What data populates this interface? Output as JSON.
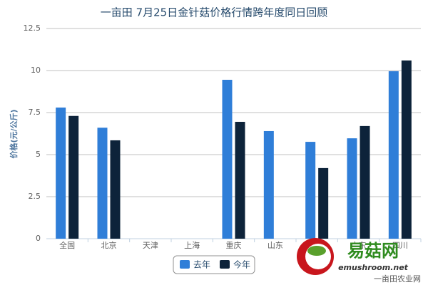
{
  "chart_data": {
    "type": "bar",
    "title": "一亩田 7月25日金针菇价格行情跨年度同日回顾",
    "y_label": "价格(元/公斤)",
    "categories": [
      "全国",
      "北京",
      "天津",
      "上海",
      "重庆",
      "山东",
      null,
      "广东",
      "四川"
    ],
    "series": [
      {
        "name": "去年",
        "color": "#2f7ed8",
        "values": [
          7.8,
          6.6,
          null,
          null,
          9.45,
          6.4,
          5.76,
          5.97,
          9.96
        ]
      },
      {
        "name": "今年",
        "color": "#0d233a",
        "values": [
          7.3,
          5.85,
          null,
          null,
          6.95,
          null,
          4.2,
          6.7,
          10.6
        ]
      }
    ],
    "ylim": [
      0,
      12.5
    ],
    "yticks": [
      0,
      2.5,
      5,
      7.5,
      10,
      12.5
    ],
    "grid": true,
    "legend": "bottom",
    "watermark": {
      "brand": "易菇网",
      "url": "emushroom.net",
      "source": "一亩田农业网"
    }
  }
}
